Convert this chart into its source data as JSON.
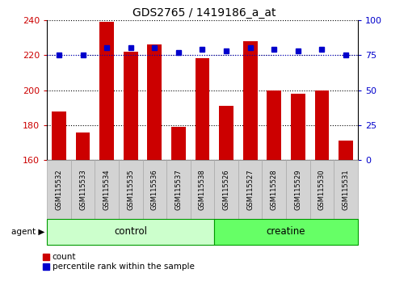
{
  "title": "GDS2765 / 1419186_a_at",
  "samples": [
    "GSM115532",
    "GSM115533",
    "GSM115534",
    "GSM115535",
    "GSM115536",
    "GSM115537",
    "GSM115538",
    "GSM115526",
    "GSM115527",
    "GSM115528",
    "GSM115529",
    "GSM115530",
    "GSM115531"
  ],
  "counts": [
    188,
    176,
    239,
    222,
    226,
    179,
    218,
    191,
    228,
    200,
    198,
    200,
    171
  ],
  "percentiles": [
    75,
    75,
    80,
    80,
    80,
    77,
    79,
    78,
    80,
    79,
    78,
    79,
    75
  ],
  "groups": [
    "control",
    "control",
    "control",
    "control",
    "control",
    "control",
    "control",
    "creatine",
    "creatine",
    "creatine",
    "creatine",
    "creatine",
    "creatine"
  ],
  "group_labels": [
    "control",
    "creatine"
  ],
  "bar_color": "#CC0000",
  "dot_color": "#0000CC",
  "ylim_left": [
    160,
    240
  ],
  "ylim_right": [
    0,
    100
  ],
  "yticks_left": [
    160,
    180,
    200,
    220,
    240
  ],
  "yticks_right": [
    0,
    25,
    50,
    75,
    100
  ],
  "left_tick_color": "#CC0000",
  "right_tick_color": "#0000CC",
  "legend_count_label": "count",
  "legend_pct_label": "percentile rank within the sample",
  "agent_label": "agent",
  "control_face": "#CCFFCC",
  "creatine_face": "#66FF66",
  "group_edge": "#009900",
  "sample_box_face": "#D3D3D3",
  "sample_box_edge": "#AAAAAA"
}
